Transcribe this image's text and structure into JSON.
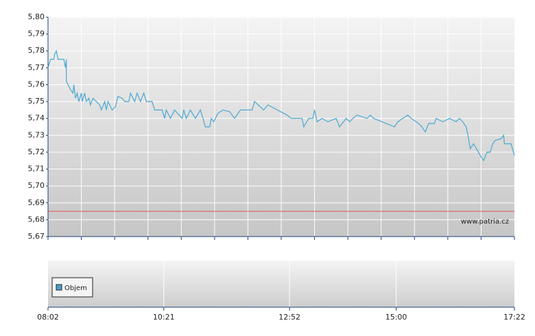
{
  "chart_data": [
    {
      "type": "line",
      "xlim": [
        "08:02",
        "17:22"
      ],
      "ylim": [
        5.67,
        5.8
      ],
      "yticks": [
        {
          "value": 5.67,
          "label": "5,67"
        },
        {
          "value": 5.68,
          "label": "5,68"
        },
        {
          "value": 5.69,
          "label": "5,69"
        },
        {
          "value": 5.7,
          "label": "5,70"
        },
        {
          "value": 5.71,
          "label": "5,71"
        },
        {
          "value": 5.72,
          "label": "5,72"
        },
        {
          "value": 5.73,
          "label": "5,73"
        },
        {
          "value": 5.74,
          "label": "5,74"
        },
        {
          "value": 5.75,
          "label": "5,75"
        },
        {
          "value": 5.76,
          "label": "5,76"
        },
        {
          "value": 5.77,
          "label": "5,77"
        },
        {
          "value": 5.78,
          "label": "5,78"
        },
        {
          "value": 5.79,
          "label": "5,79"
        },
        {
          "value": 5.8,
          "label": "5,80"
        }
      ],
      "grid": true,
      "reference_line": 5.685,
      "reference_color": "#e05050",
      "watermark": "www.patria.cz",
      "x": [
        "08:02",
        "08:05",
        "08:09",
        "08:10",
        "08:12",
        "08:14",
        "08:21",
        "08:23",
        "08:24",
        "08:24",
        "08:29",
        "08:32",
        "08:33",
        "08:35",
        "08:37",
        "08:39",
        "08:42",
        "08:43",
        "08:46",
        "08:48",
        "08:51",
        "08:53",
        "08:56",
        "09:00",
        "09:04",
        "09:06",
        "09:10",
        "09:12",
        "09:14",
        "09:19",
        "09:23",
        "09:26",
        "09:31",
        "09:34",
        "09:39",
        "09:41",
        "09:46",
        "09:49",
        "09:53",
        "09:57",
        "10:00",
        "10:07",
        "10:10",
        "10:19",
        "10:22",
        "10:24",
        "10:29",
        "10:34",
        "10:43",
        "10:45",
        "10:48",
        "10:53",
        "10:59",
        "11:05",
        "11:08",
        "11:11",
        "11:16",
        "11:18",
        "11:21",
        "11:26",
        "11:32",
        "11:40",
        "11:46",
        "11:53",
        "12:07",
        "12:10",
        "12:21",
        "12:26",
        "12:49",
        "12:54",
        "13:07",
        "13:09",
        "13:15",
        "13:20",
        "13:22",
        "13:25",
        "13:31",
        "13:38",
        "13:48",
        "13:52",
        "14:00",
        "14:04",
        "14:08",
        "14:13",
        "14:25",
        "14:29",
        "14:33",
        "14:58",
        "15:02",
        "15:14",
        "15:18",
        "15:27",
        "15:31",
        "15:35",
        "15:39",
        "15:46",
        "15:48",
        "15:56",
        "16:04",
        "16:12",
        "16:16",
        "16:20",
        "16:24",
        "16:27",
        "16:29",
        "16:33",
        "16:41",
        "16:45",
        "16:49",
        "16:53",
        "16:56",
        "16:59",
        "17:06",
        "17:09",
        "17:10",
        "17:18",
        "17:22"
      ],
      "series": [
        {
          "color": "#4aa8d0",
          "values": [
            5.77,
            5.775,
            5.775,
            5.778,
            5.78,
            5.775,
            5.775,
            5.77,
            5.775,
            5.762,
            5.757,
            5.755,
            5.76,
            5.752,
            5.755,
            5.75,
            5.755,
            5.75,
            5.755,
            5.75,
            5.752,
            5.748,
            5.752,
            5.75,
            5.748,
            5.745,
            5.75,
            5.745,
            5.75,
            5.745,
            5.747,
            5.753,
            5.752,
            5.75,
            5.75,
            5.755,
            5.75,
            5.755,
            5.75,
            5.755,
            5.75,
            5.75,
            5.745,
            5.745,
            5.74,
            5.745,
            5.74,
            5.745,
            5.74,
            5.745,
            5.74,
            5.745,
            5.74,
            5.745,
            5.74,
            5.735,
            5.735,
            5.74,
            5.738,
            5.743,
            5.745,
            5.744,
            5.74,
            5.745,
            5.745,
            5.75,
            5.745,
            5.748,
            5.742,
            5.74,
            5.74,
            5.735,
            5.74,
            5.74,
            5.745,
            5.738,
            5.74,
            5.738,
            5.74,
            5.735,
            5.74,
            5.738,
            5.74,
            5.742,
            5.74,
            5.742,
            5.74,
            5.735,
            5.738,
            5.742,
            5.74,
            5.737,
            5.735,
            5.732,
            5.737,
            5.737,
            5.74,
            5.738,
            5.74,
            5.738,
            5.74,
            5.738,
            5.735,
            5.728,
            5.722,
            5.725,
            5.718,
            5.715,
            5.72,
            5.72,
            5.725,
            5.727,
            5.728,
            5.73,
            5.725,
            5.725,
            5.718
          ]
        }
      ]
    },
    {
      "type": "bar",
      "xlim": [
        "08:02",
        "17:22"
      ],
      "xticks": [
        "08:02",
        "10:21",
        "12:52",
        "15:00",
        "17:22"
      ],
      "series": [
        {
          "name": "Objem",
          "color": "#4a9fd0",
          "values": []
        }
      ]
    }
  ]
}
